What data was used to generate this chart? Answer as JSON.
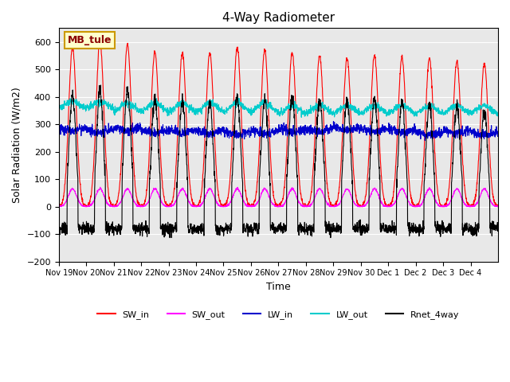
{
  "title": "4-Way Radiometer",
  "xlabel": "Time",
  "ylabel": "Solar Radiation (W/m2)",
  "ylim": [
    -200,
    650
  ],
  "yticks": [
    -200,
    -100,
    0,
    100,
    200,
    300,
    400,
    500,
    600
  ],
  "bg_color": "#e8e8e8",
  "fig_color": "#ffffff",
  "label_box": "MB_tule",
  "label_box_bg": "#ffffcc",
  "label_box_border": "#cc9900",
  "colors": {
    "SW_in": "#ff0000",
    "SW_out": "#ff00ff",
    "LW_in": "#0000cc",
    "LW_out": "#00cccc",
    "Rnet_4way": "#000000"
  },
  "n_days": 16,
  "pts_per_day": 144,
  "tick_labels": [
    "Nov 19",
    "Nov 20",
    "Nov 21",
    "Nov 22",
    "Nov 23",
    "Nov 24",
    "Nov 25",
    "Nov 26",
    "Nov 27",
    "Nov 28",
    "Nov 29",
    "Nov 30",
    "Dec 1",
    "Dec 2",
    "Dec 3",
    "Dec 4"
  ],
  "SW_in_peaks": [
    580,
    600,
    590,
    565,
    560,
    560,
    580,
    570,
    560,
    550,
    540,
    550,
    545,
    540,
    530,
    520
  ]
}
